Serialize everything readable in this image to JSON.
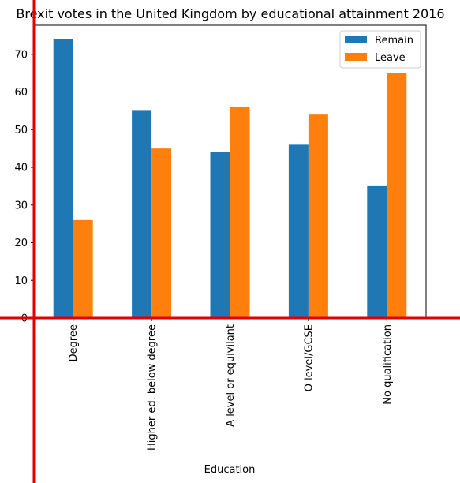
{
  "chart_data": {
    "type": "bar",
    "title": "Brexit votes in the United Kingdom by educational attainment 2016",
    "xlabel": "Education",
    "ylabel": "",
    "categories": [
      "Degree",
      "Higher ed. below degree",
      "A level or equivilant",
      "O level/GCSE",
      "No qualification"
    ],
    "series": [
      {
        "name": "Remain",
        "values": [
          74,
          55,
          44,
          46,
          35
        ],
        "color": "#1f77b4"
      },
      {
        "name": "Leave",
        "values": [
          26,
          45,
          56,
          54,
          65
        ],
        "color": "#ff7f0e"
      }
    ],
    "ylim": [
      0,
      77.7
    ],
    "yticks": [
      0,
      10,
      20,
      30,
      40,
      50,
      60,
      70
    ],
    "grid": false,
    "legend_position": "top-right",
    "annotation_line_color": "#e00000"
  }
}
